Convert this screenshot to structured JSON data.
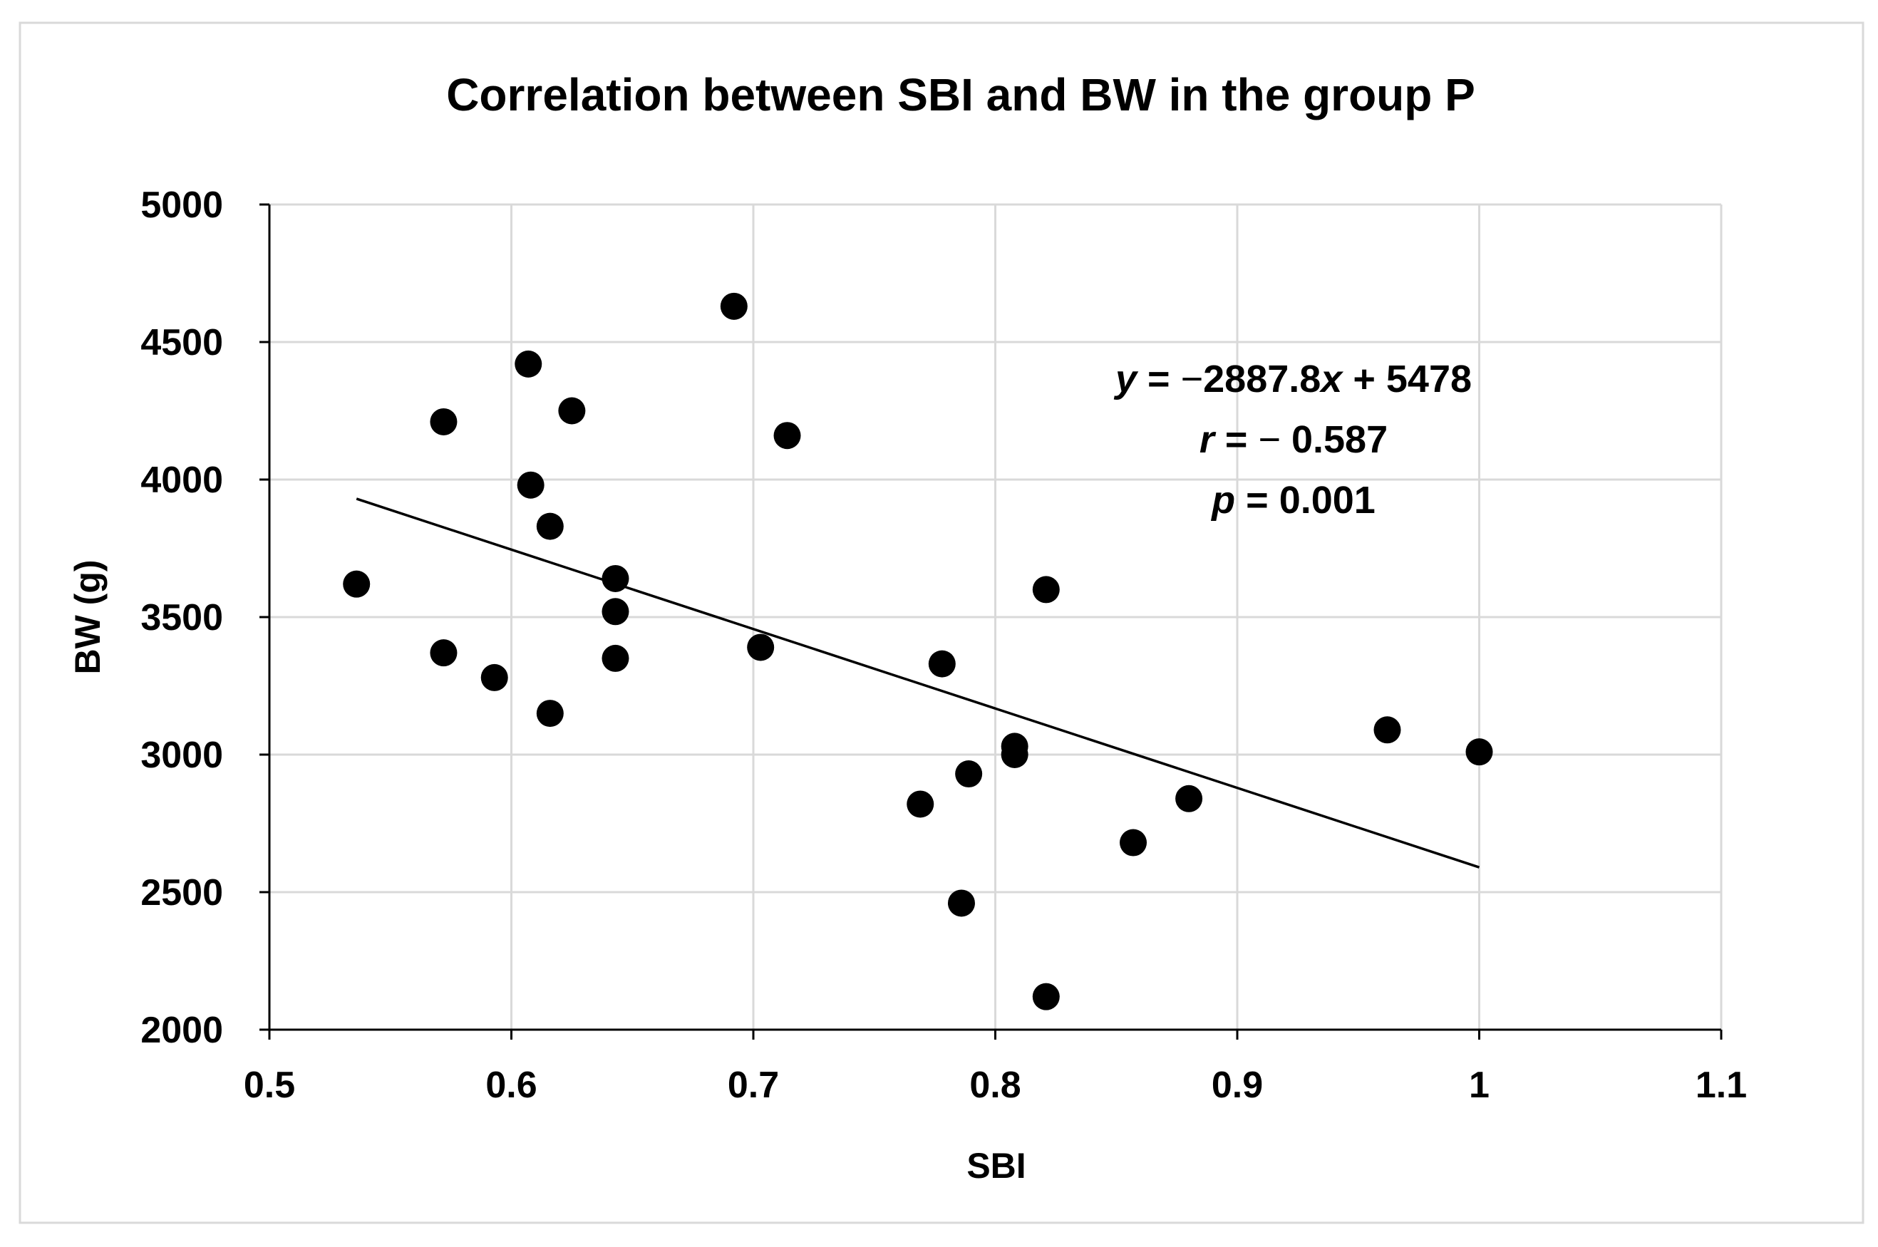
{
  "chart_data": {
    "type": "scatter",
    "title": "Correlation between SBI and BW in the group P",
    "xlabel": "SBI",
    "ylabel": "BW (g)",
    "xlim": [
      0.5,
      1.1
    ],
    "ylim": [
      2000,
      5000
    ],
    "xticks": [
      0.5,
      0.6,
      0.7,
      0.8,
      0.9,
      1.0,
      1.1
    ],
    "xtick_labels": [
      "0.5",
      "0.6",
      "0.7",
      "0.8",
      "0.9",
      "1",
      "1.1"
    ],
    "yticks": [
      2000,
      2500,
      3000,
      3500,
      4000,
      4500,
      5000
    ],
    "ytick_labels": [
      "2000",
      "2500",
      "3000",
      "3500",
      "4000",
      "4500",
      "5000"
    ],
    "grid": true,
    "points": [
      {
        "x": 0.536,
        "y": 3620
      },
      {
        "x": 0.572,
        "y": 4210
      },
      {
        "x": 0.572,
        "y": 3370
      },
      {
        "x": 0.593,
        "y": 3280
      },
      {
        "x": 0.607,
        "y": 4420
      },
      {
        "x": 0.608,
        "y": 3980
      },
      {
        "x": 0.616,
        "y": 3830
      },
      {
        "x": 0.616,
        "y": 3150
      },
      {
        "x": 0.625,
        "y": 4250
      },
      {
        "x": 0.643,
        "y": 3640
      },
      {
        "x": 0.643,
        "y": 3520
      },
      {
        "x": 0.643,
        "y": 3350
      },
      {
        "x": 0.692,
        "y": 4630
      },
      {
        "x": 0.703,
        "y": 3390
      },
      {
        "x": 0.714,
        "y": 4160
      },
      {
        "x": 0.769,
        "y": 2820
      },
      {
        "x": 0.778,
        "y": 3330
      },
      {
        "x": 0.786,
        "y": 2460
      },
      {
        "x": 0.789,
        "y": 2930
      },
      {
        "x": 0.808,
        "y": 3030
      },
      {
        "x": 0.808,
        "y": 3000
      },
      {
        "x": 0.821,
        "y": 3600
      },
      {
        "x": 0.821,
        "y": 2120
      },
      {
        "x": 0.857,
        "y": 2680
      },
      {
        "x": 0.88,
        "y": 2840
      },
      {
        "x": 0.962,
        "y": 3090
      },
      {
        "x": 1.0,
        "y": 3010
      }
    ],
    "trendline": {
      "slope": -2887.8,
      "intercept": 5478,
      "x_range": [
        0.536,
        1.0
      ]
    },
    "annotations": {
      "equation_parts": [
        "y",
        " = ",
        "−",
        "2887.8",
        "x",
        " + 5478"
      ],
      "r_parts": [
        "r",
        " = ",
        "−",
        " 0.587"
      ],
      "p_parts": [
        "p",
        " = 0.001"
      ]
    },
    "colors": {
      "points": "#000000",
      "trendline": "#000000",
      "grid": "#d9d9d9",
      "axis": "#000000",
      "border": "#d9d9d9"
    }
  }
}
